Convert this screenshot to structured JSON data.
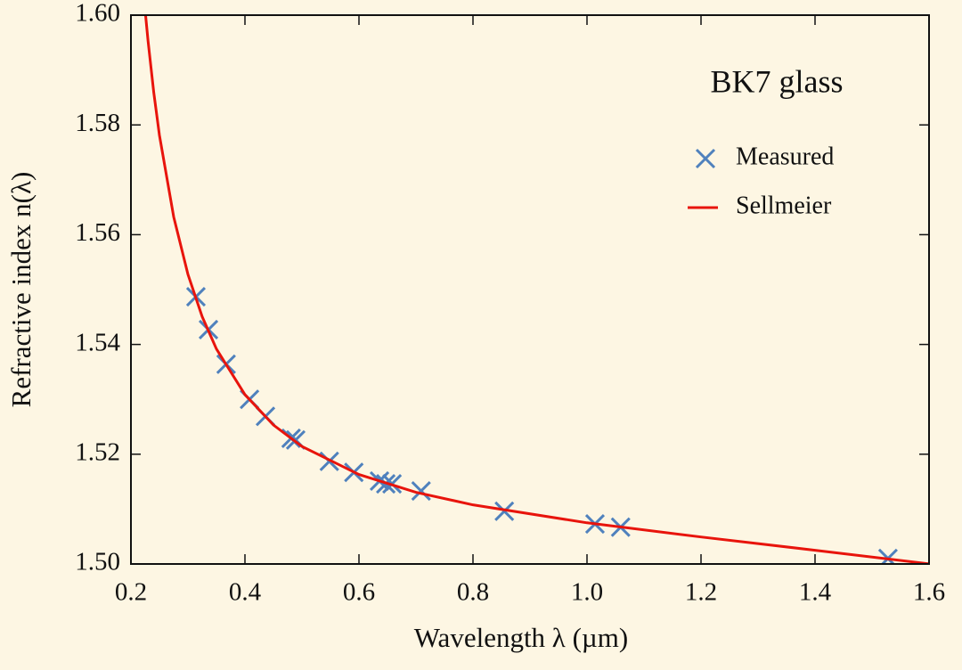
{
  "chart_data": {
    "type": "line",
    "title": "BK7 glass",
    "xlabel": "Wavelength λ (µm)",
    "ylabel": "Refractive index n(λ)",
    "xlim": [
      0.2,
      1.6
    ],
    "ylim": [
      1.5,
      1.6
    ],
    "xticks": [
      0.2,
      0.4,
      0.6,
      0.8,
      {
        "value": 1,
        "label": "1.0"
      },
      1.2,
      1.4,
      1.6
    ],
    "yticks": [
      {
        "value": 1.5,
        "label": "1.50"
      },
      1.52,
      1.54,
      1.56,
      1.58,
      {
        "value": 1.6,
        "label": "1.60"
      }
    ],
    "legend": "upper right",
    "series": [
      {
        "name": "Measured",
        "color": "#4f81bd",
        "marker": "x",
        "x": [
          0.314,
          0.336,
          0.367,
          0.408,
          0.436,
          0.481,
          0.489,
          0.548,
          0.591,
          0.636,
          0.647,
          0.658,
          0.709,
          0.855,
          1.014,
          1.059,
          1.528
        ],
        "values": [
          1.5487,
          1.5427,
          1.5364,
          1.53,
          1.5269,
          1.5229,
          1.5226,
          1.5187,
          1.5167,
          1.5151,
          1.5146,
          1.5146,
          1.5133,
          1.5096,
          1.5073,
          1.5067,
          1.501
        ]
      },
      {
        "name": "Sellmeier",
        "color": "#e8140c",
        "x": [
          0.225,
          0.23,
          0.24,
          0.25,
          0.275,
          0.3,
          0.325,
          0.35,
          0.4,
          0.45,
          0.5,
          0.6,
          0.7,
          0.8,
          1.0,
          1.2,
          1.4,
          1.6
        ],
        "values": [
          1.60073,
          1.59531,
          1.58594,
          1.57811,
          1.56324,
          1.55277,
          1.54506,
          1.53917,
          1.53085,
          1.52532,
          1.52142,
          1.5163,
          1.51306,
          1.51077,
          1.5075,
          1.50492,
          1.5025,
          1.50002
        ]
      }
    ]
  }
}
